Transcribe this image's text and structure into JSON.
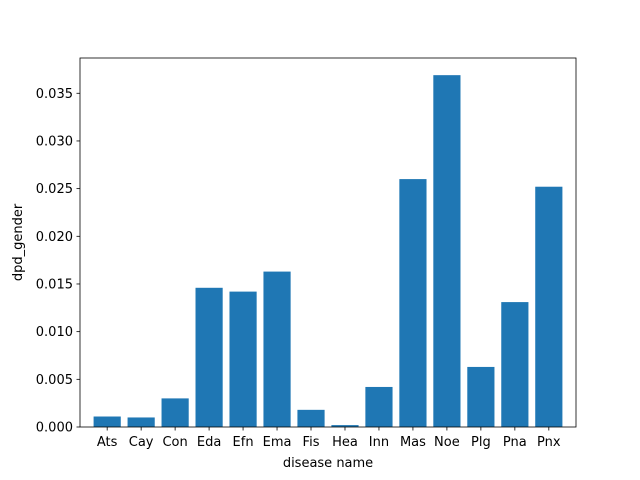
{
  "chart_data": {
    "type": "bar",
    "title": "",
    "xlabel": "disease name",
    "ylabel": "dpd_gender",
    "categories": [
      "Ats",
      "Cay",
      "Con",
      "Eda",
      "Efn",
      "Ema",
      "Fis",
      "Hea",
      "Inn",
      "Mas",
      "Noe",
      "Plg",
      "Pna",
      "Pnx"
    ],
    "values": [
      0.0011,
      0.001,
      0.003,
      0.0146,
      0.0142,
      0.0163,
      0.0018,
      0.0002,
      0.0042,
      0.026,
      0.0369,
      0.0063,
      0.0131,
      0.0252
    ],
    "ylim": [
      0,
      0.0387
    ],
    "yticks": [
      0,
      0.005,
      0.01,
      0.015,
      0.02,
      0.025,
      0.03,
      0.035
    ],
    "ytick_labels": [
      "0.000",
      "0.005",
      "0.010",
      "0.015",
      "0.020",
      "0.025",
      "0.030",
      "0.035"
    ],
    "grid": false,
    "bar_color": "#1f77b4"
  }
}
